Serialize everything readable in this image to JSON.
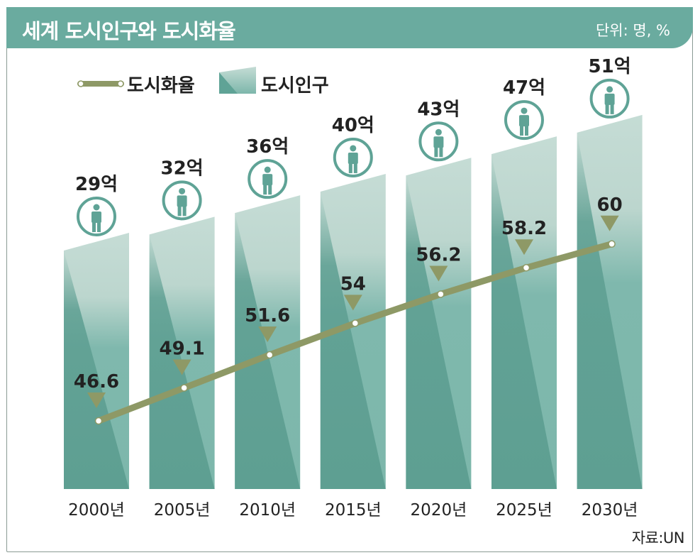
{
  "header": {
    "title": "세계 도시인구와 도시화율",
    "unit": "단위: 명, %"
  },
  "source": "자료:UN",
  "colors": {
    "header_bg": "#6aab9f",
    "bar_dark": "#5fa396",
    "bar_light": "#c5dcd5",
    "line": "#8e9966",
    "triangle": "#8e9966",
    "icon": "#5fa396"
  },
  "chart_data": {
    "type": "bar",
    "categories": [
      "2000년",
      "2005년",
      "2010년",
      "2015년",
      "2020년",
      "2025년",
      "2030년"
    ],
    "series": [
      {
        "name": "도시인구",
        "type": "bar",
        "values": [
          29,
          32,
          36,
          40,
          43,
          47,
          51
        ],
        "labels": [
          "29억",
          "32억",
          "36억",
          "40억",
          "43억",
          "47억",
          "51억"
        ],
        "icon": "person-icon"
      },
      {
        "name": "도시화율",
        "type": "line",
        "values": [
          46.6,
          49.1,
          51.6,
          54,
          56.2,
          58.2,
          60
        ],
        "labels": [
          "46.6",
          "49.1",
          "51.6",
          "54",
          "56.2",
          "58.2",
          "60"
        ]
      }
    ],
    "legend": {
      "position": "top-left",
      "entries": [
        {
          "label": "도시화율",
          "symbol": "line"
        },
        {
          "label": "도시인구",
          "symbol": "bar"
        }
      ]
    },
    "grid": false
  }
}
